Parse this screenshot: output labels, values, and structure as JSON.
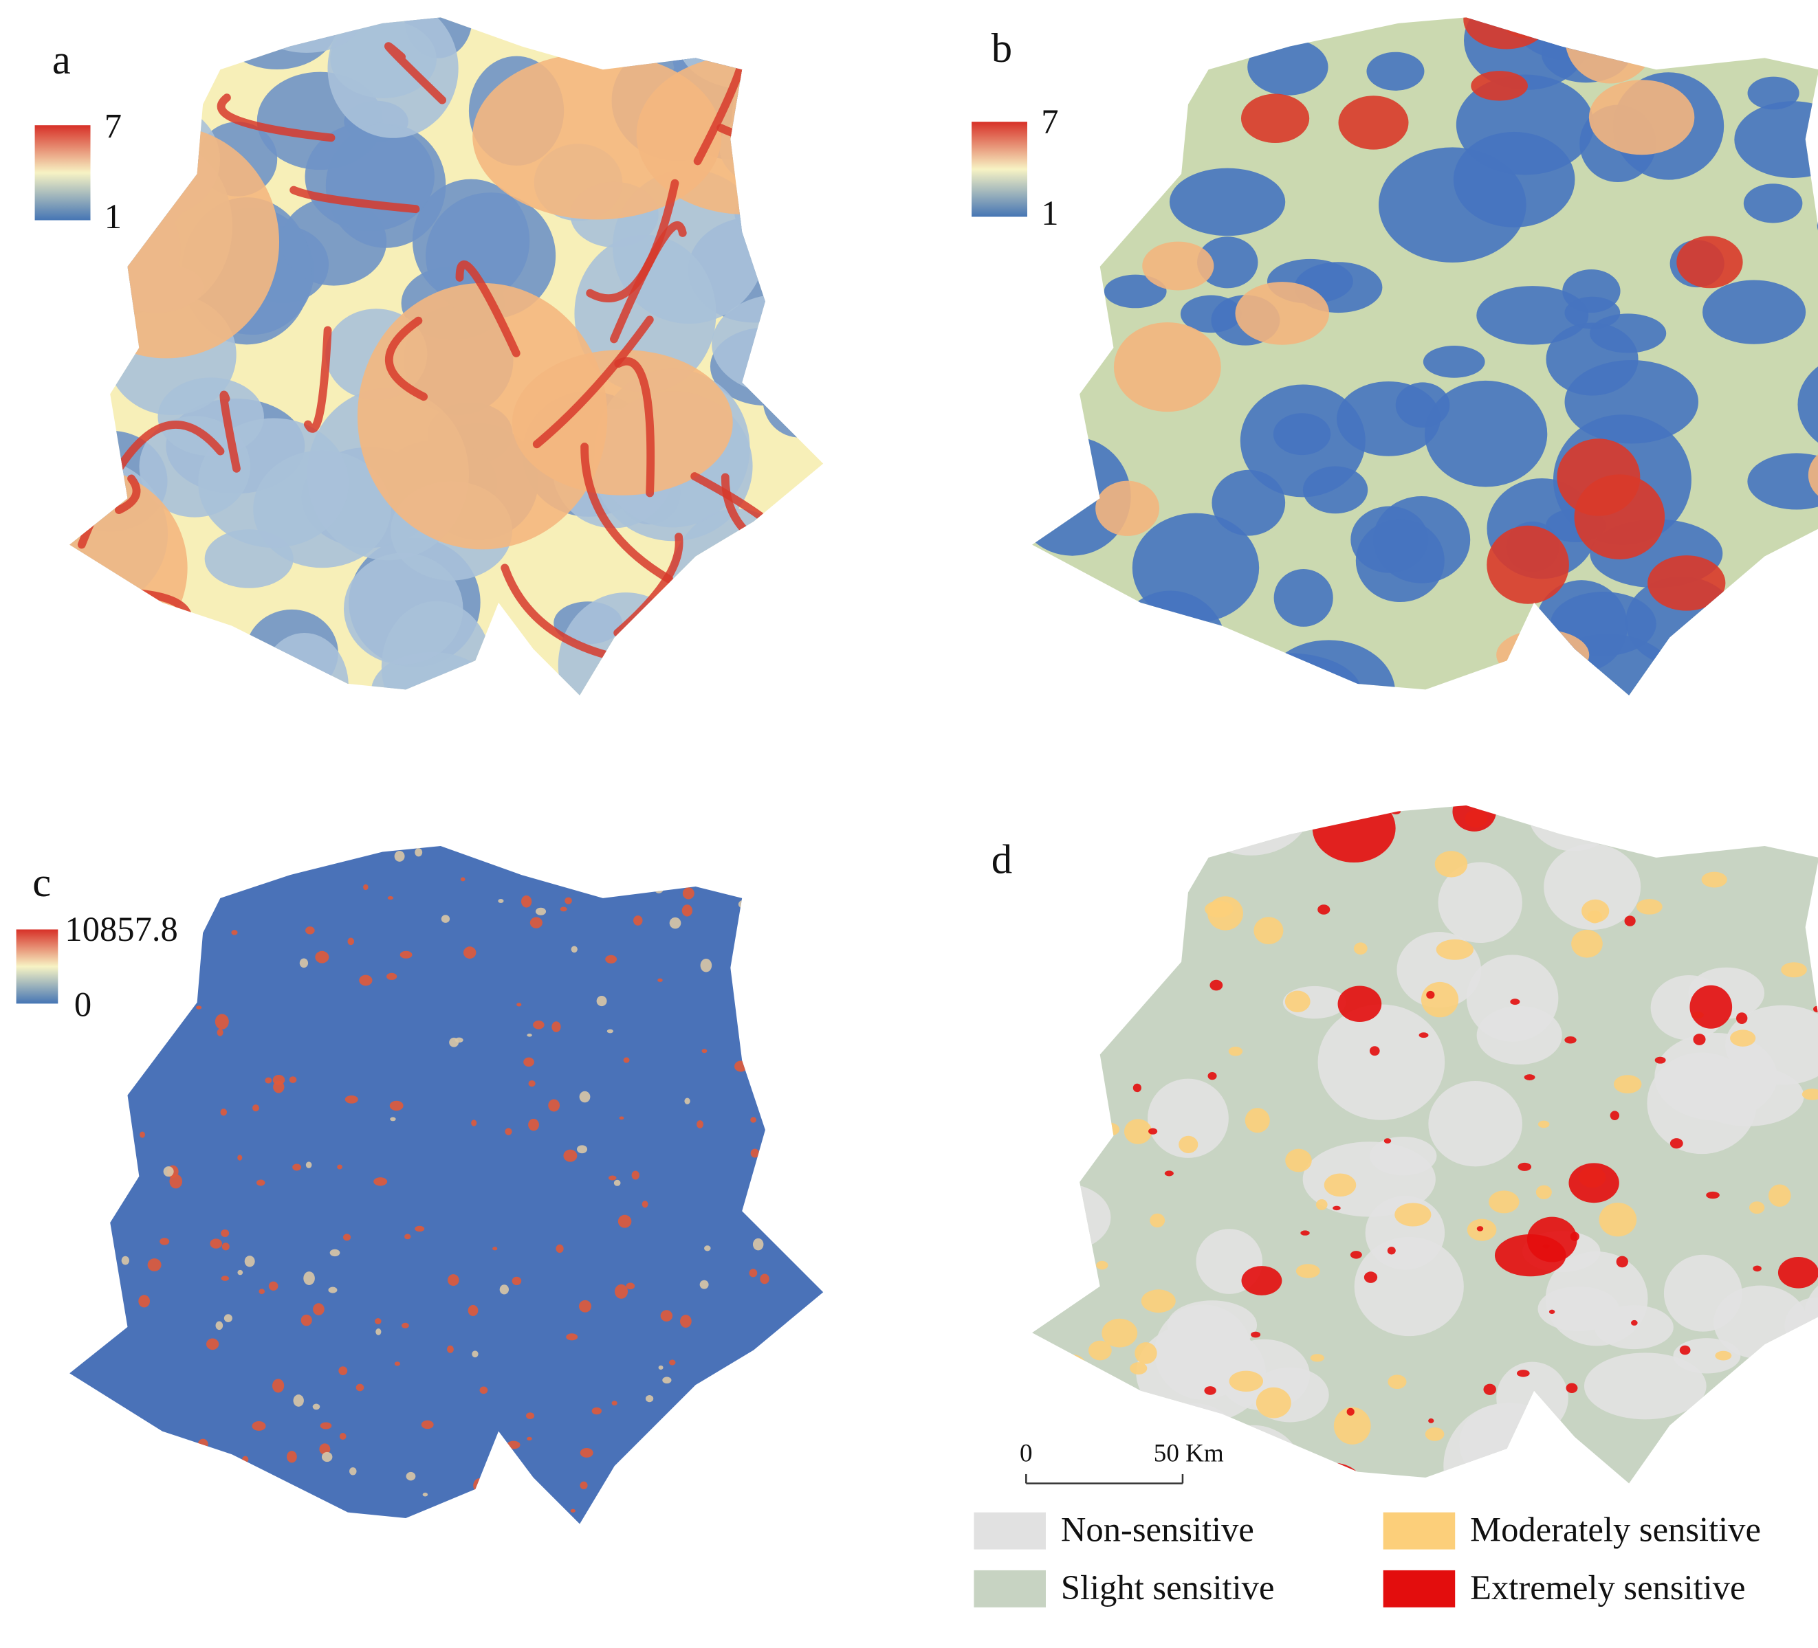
{
  "panels": [
    {
      "label": "a",
      "colorbar": {
        "max": 7,
        "min": 1
      }
    },
    {
      "label": "b",
      "colorbar": {
        "max": 7,
        "min": 1
      }
    },
    {
      "label": "c",
      "colorbar": {
        "max": 10857.8,
        "min": 0
      }
    },
    {
      "label": "d"
    }
  ],
  "scale_bar": {
    "start": 0,
    "end_label": "50 Km"
  },
  "legend": [
    {
      "label": "Non-sensitive",
      "color": "#e1e1e1"
    },
    {
      "label": "Slight sensitive",
      "color": "#c7d3c2"
    },
    {
      "label": "Moderately sensitive",
      "color": "#fccf7a"
    },
    {
      "label": "Extremely sensitive",
      "color": "#e30d0d"
    }
  ]
}
